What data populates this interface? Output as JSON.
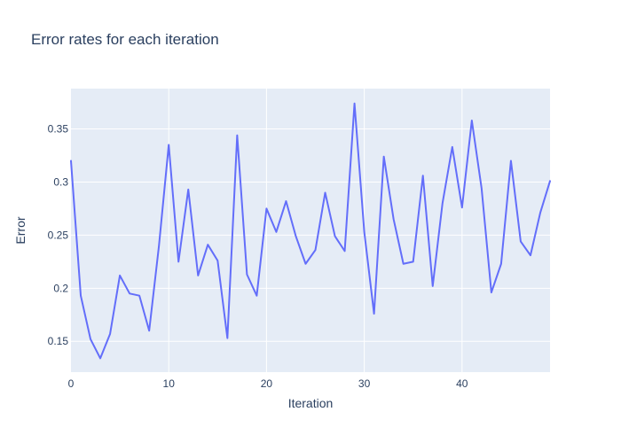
{
  "chart_data": {
    "type": "line",
    "title": "Error rates for each iteration",
    "xlabel": "Iteration",
    "ylabel": "Error",
    "xlim": [
      0,
      49
    ],
    "ylim": [
      0.121,
      0.388
    ],
    "xticks": [
      0,
      10,
      20,
      30,
      40
    ],
    "yticks": [
      0.15,
      0.2,
      0.25,
      0.3,
      0.35
    ],
    "xtick_labels": [
      "0",
      "10",
      "20",
      "30",
      "40"
    ],
    "ytick_labels": [
      "0.15",
      "0.2",
      "0.25",
      "0.3",
      "0.35"
    ],
    "grid": true,
    "plot_background": "#e5ecf6",
    "line_color": "#636efa",
    "series": [
      {
        "x": [
          0,
          1,
          2,
          3,
          4,
          5,
          6,
          7,
          8,
          9,
          10,
          11,
          12,
          13,
          14,
          15,
          16,
          17,
          18,
          19,
          20,
          21,
          22,
          23,
          24,
          25,
          26,
          27,
          28,
          29,
          30,
          31,
          32,
          33,
          34,
          35,
          36,
          37,
          38,
          39,
          40,
          41,
          42,
          43,
          44,
          45,
          46,
          47,
          48,
          49
        ],
        "values": [
          0.32,
          0.193,
          0.152,
          0.134,
          0.157,
          0.212,
          0.195,
          0.193,
          0.16,
          0.24,
          0.335,
          0.225,
          0.293,
          0.212,
          0.241,
          0.226,
          0.153,
          0.344,
          0.213,
          0.193,
          0.275,
          0.253,
          0.282,
          0.249,
          0.223,
          0.236,
          0.29,
          0.249,
          0.235,
          0.374,
          0.253,
          0.176,
          0.324,
          0.265,
          0.223,
          0.225,
          0.306,
          0.202,
          0.28,
          0.333,
          0.276,
          0.358,
          0.294,
          0.196,
          0.223,
          0.32,
          0.244,
          0.231,
          0.271,
          0.301
        ]
      }
    ]
  }
}
